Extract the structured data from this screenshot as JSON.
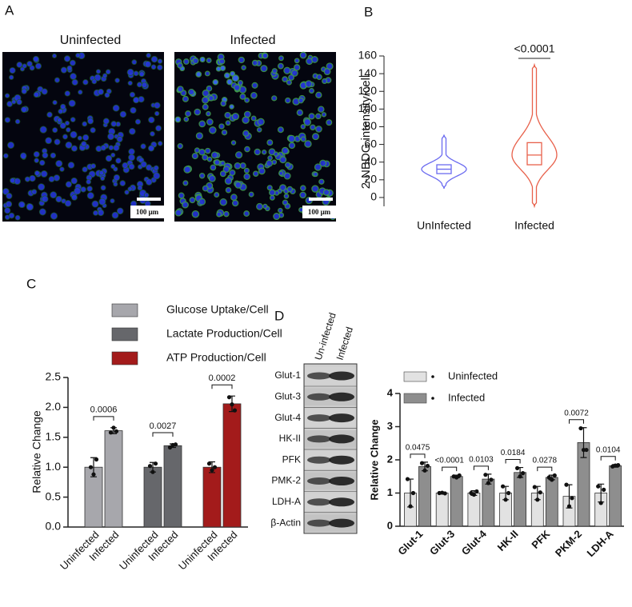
{
  "panel_labels": [
    "A",
    "B",
    "C",
    "D"
  ],
  "micrographs": {
    "titles": [
      "Uninfected",
      "Infected"
    ],
    "scale_bar": "100 μm"
  },
  "blot": {
    "columns": [
      "Un-infected",
      "Infected"
    ],
    "rows": [
      "Glut-1",
      "Glut-3",
      "Glut-4",
      "HK-II",
      "PFK",
      "PMK-2",
      "LDH-A",
      "β-Actin"
    ]
  },
  "chart_data": [
    {
      "type": "violin",
      "ylabel": "2-NBDG intensity/cell",
      "categories": [
        "UnInfected",
        "Infected"
      ],
      "stats": [
        {
          "color": "#6b6bf0",
          "min": 10,
          "q1": 27,
          "median": 32,
          "q3": 37,
          "max": 71
        },
        {
          "color": "#e8604a",
          "min": -10,
          "q1": 37,
          "median": 48,
          "q3": 62,
          "max": 150
        }
      ],
      "annotation": "<0.0001",
      "ylim": [
        -10,
        160
      ],
      "yticks": [
        0,
        20,
        40,
        60,
        80,
        100,
        120,
        140,
        160
      ]
    },
    {
      "type": "bar",
      "ylabel": "Relative Change",
      "categories": [
        "Uninfected",
        "Infected"
      ],
      "series": [
        {
          "name": "Glucose Uptake/Cell",
          "color": "#a7a7ac",
          "values": [
            1.0,
            1.61
          ],
          "errors": [
            0.16,
            0.05
          ],
          "points": [
            [
              1.0,
              0.88,
              1.13
            ],
            [
              1.58,
              1.66,
              1.6
            ]
          ]
        },
        {
          "name": "Lactate Production/Cell",
          "color": "#66676b",
          "values": [
            1.0,
            1.36
          ],
          "errors": [
            0.08,
            0.03
          ],
          "points": [
            [
              1.02,
              0.92,
              1.06
            ],
            [
              1.33,
              1.37,
              1.38
            ]
          ]
        },
        {
          "name": "ATP Production/Cell",
          "color": "#a31b1b",
          "values": [
            1.0,
            2.06
          ],
          "errors": [
            0.09,
            0.13
          ],
          "points": [
            [
              1.06,
              0.95,
              1.0
            ],
            [
              2.17,
              2.05,
              1.95
            ]
          ]
        }
      ],
      "p_values": [
        "0.0006",
        "0.0027",
        "0.0002"
      ],
      "ylim": [
        0,
        2.5
      ],
      "yticks": [
        {
          "value": 0,
          "label": "0.0"
        },
        {
          "value": 0.5,
          "label": "0.5"
        },
        {
          "value": 1,
          "label": "1.0"
        },
        {
          "value": 1.5,
          "label": "1.5"
        },
        {
          "value": 2,
          "label": "2.0"
        },
        {
          "value": 2.5,
          "label": "2.5"
        }
      ]
    },
    {
      "type": "bar",
      "ylabel": "Relative Change",
      "categories": [
        "Glut-1",
        "Glut-3",
        "Glut-4",
        "HK-II",
        "PFK",
        "PKM-2",
        "LDH-A"
      ],
      "series": [
        {
          "name": "Uninfected",
          "color": "#e2e2e2",
          "values": [
            1.0,
            1.0,
            1.0,
            1.0,
            1.0,
            0.9,
            1.0
          ],
          "errors": [
            0.42,
            0.02,
            0.07,
            0.2,
            0.2,
            0.35,
            0.27
          ],
          "points": [
            [
              1.42,
              0.6,
              1.0
            ],
            [
              1.0,
              1.01,
              0.99
            ],
            [
              1.0,
              0.95,
              1.05
            ],
            [
              1.2,
              0.8,
              1.0
            ],
            [
              1.18,
              0.8,
              1.02
            ],
            [
              1.25,
              0.6,
              0.85
            ],
            [
              1.2,
              0.7,
              1.1
            ]
          ]
        },
        {
          "name": "Infected",
          "color": "#8e8e8e",
          "values": [
            1.8,
            1.5,
            1.42,
            1.62,
            1.47,
            2.52,
            1.82
          ],
          "errors": [
            0.13,
            0.04,
            0.15,
            0.15,
            0.07,
            0.45,
            0.04
          ],
          "points": [
            [
              1.9,
              1.68,
              1.82
            ],
            [
              1.5,
              1.47,
              1.53
            ],
            [
              1.55,
              1.3,
              1.4
            ],
            [
              1.75,
              1.5,
              1.6
            ],
            [
              1.47,
              1.4,
              1.53
            ],
            [
              2.95,
              2.3,
              2.3
            ],
            [
              1.8,
              1.83,
              1.84
            ]
          ]
        }
      ],
      "p_values": [
        "0.0475",
        "<0.0001",
        "0.0103",
        "0.0184",
        "0.0278",
        "0.0072",
        "0.0104"
      ],
      "ylim": [
        0,
        4
      ],
      "yticks": [
        0,
        1,
        2,
        3,
        4
      ]
    }
  ]
}
